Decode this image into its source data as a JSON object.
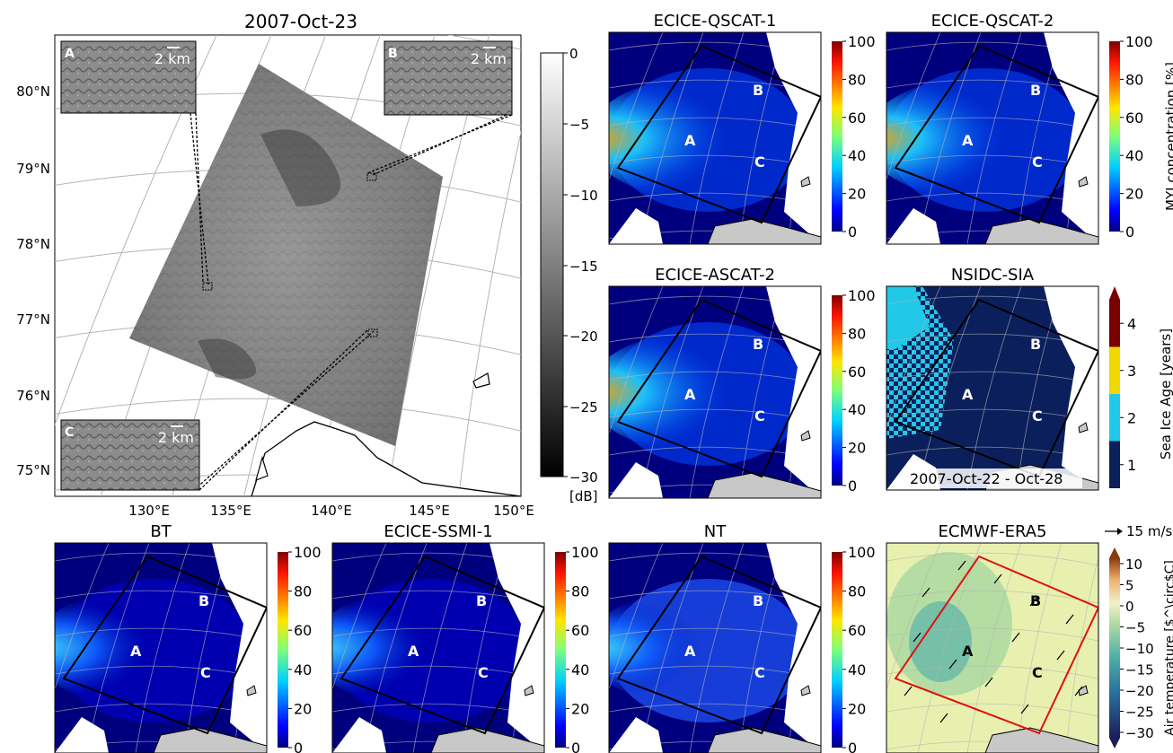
{
  "sar": {
    "title": "2007-Oct-23",
    "lat_labels": [
      "80°N",
      "79°N",
      "78°N",
      "77°N",
      "76°N",
      "75°N"
    ],
    "lon_labels": [
      "130°E",
      "135°E",
      "140°E",
      "145°E",
      "150°E"
    ],
    "colorbar": {
      "ticks": [
        "0",
        "−5",
        "−10",
        "−15",
        "−20",
        "−25",
        "−30"
      ],
      "unit": "[dB]"
    },
    "insets": [
      {
        "letter": "A",
        "scale": "2 km"
      },
      {
        "letter": "B",
        "scale": "2 km"
      },
      {
        "letter": "C",
        "scale": "2 km"
      }
    ]
  },
  "panels": [
    {
      "id": "qscat1",
      "title": "ECICE-QSCAT-1"
    },
    {
      "id": "qscat2",
      "title": "ECICE-QSCAT-2"
    },
    {
      "id": "ascat2",
      "title": "ECICE-ASCAT-2"
    },
    {
      "id": "nsidc",
      "title": "NSIDC-SIA",
      "note": "2007-Oct-22 - Oct-28"
    },
    {
      "id": "bt",
      "title": "BT"
    },
    {
      "id": "ssmi1",
      "title": "ECICE-SSMI-1"
    },
    {
      "id": "nt",
      "title": "NT"
    },
    {
      "id": "era5",
      "title": "ECMWF-ERA5"
    }
  ],
  "region_labels": [
    "A",
    "B",
    "C"
  ],
  "myi_colorbar": {
    "ticks": [
      "100",
      "80",
      "60",
      "40",
      "20",
      "0"
    ],
    "label": "MYI concentration [%]"
  },
  "age_colorbar": {
    "ticks": [
      "4",
      "3",
      "2",
      "1"
    ],
    "label": "Sea Ice Age [years]"
  },
  "era5": {
    "wind_key": "15 m/s",
    "ticks": [
      "10",
      "5",
      "0",
      "−5",
      "−10",
      "−15",
      "−20",
      "−25",
      "−30"
    ],
    "label": "Air temperature [$^\\circ$C]"
  },
  "colors": {
    "jet_dark": "#00007f",
    "jet_blue": "#0050ff",
    "jet_cyan": "#20d0ff",
    "jet_yellow": "#ffe000",
    "jet_red": "#e01000",
    "age_dark": "#0b1f5c",
    "age_cyan": "#21c8e8",
    "age_yellow": "#f0d800",
    "age_red": "#7a0000",
    "era_light": "#e8f0b0",
    "era_green": "#a8d8a0",
    "era_teal": "#5ab4a8",
    "land": "#c8c8c8",
    "box_black": "#000000",
    "box_red": "#e01010"
  }
}
